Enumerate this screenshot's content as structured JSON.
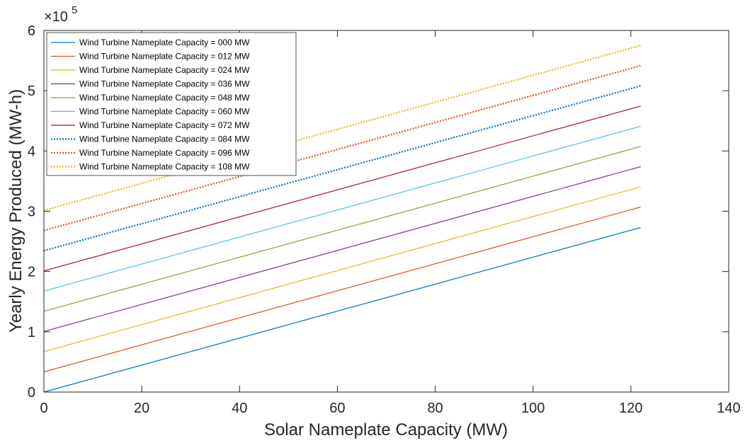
{
  "chart_data": {
    "type": "line",
    "xlabel": "Solar Nameplate Capacity (MW)",
    "ylabel": "Yearly Energy Produced (MW-h)",
    "y_exponent_base": "×10",
    "y_exponent_power": "5",
    "xlim": [
      0,
      140
    ],
    "ylim": [
      0,
      6
    ],
    "y_scale_factor": 100000,
    "x_ticks": [
      0,
      20,
      40,
      60,
      80,
      100,
      120,
      140
    ],
    "y_ticks": [
      0,
      1,
      2,
      3,
      4,
      5,
      6
    ],
    "grid": false,
    "legend_position": "top-left",
    "x": [
      0,
      122
    ],
    "series": [
      {
        "name": "Wind Turbine Nameplate Capacity =  000 MW",
        "values": [
          0.0,
          2.73
        ],
        "color": "#0072BD",
        "style": "solid"
      },
      {
        "name": "Wind Turbine Nameplate Capacity =  012 MW",
        "values": [
          0.335,
          3.07
        ],
        "color": "#D95319",
        "style": "solid"
      },
      {
        "name": "Wind Turbine Nameplate Capacity =  024 MW",
        "values": [
          0.67,
          3.405
        ],
        "color": "#EDB120",
        "style": "solid"
      },
      {
        "name": "Wind Turbine Nameplate Capacity =  036 MW",
        "values": [
          1.005,
          3.74
        ],
        "color": "#7E2F8E",
        "style": "solid"
      },
      {
        "name": "Wind Turbine Nameplate Capacity =  048 MW",
        "values": [
          1.34,
          4.075
        ],
        "color": "#77AC30",
        "style": "solid"
      },
      {
        "name": "Wind Turbine Nameplate Capacity =  060 MW",
        "values": [
          1.675,
          4.41
        ],
        "color": "#4DBEEE",
        "style": "solid"
      },
      {
        "name": "Wind Turbine Nameplate Capacity =  072 MW",
        "values": [
          2.01,
          4.745
        ],
        "color": "#A2142F",
        "style": "solid"
      },
      {
        "name": "Wind Turbine Nameplate Capacity =  084 MW",
        "values": [
          2.345,
          5.08
        ],
        "color": "#0072BD",
        "style": "dotted"
      },
      {
        "name": "Wind Turbine Nameplate Capacity =  096 MW",
        "values": [
          2.68,
          5.415
        ],
        "color": "#D95319",
        "style": "dotted"
      },
      {
        "name": "Wind Turbine Nameplate Capacity = 108 MW",
        "values": [
          3.015,
          5.75
        ],
        "color": "#EDB120",
        "style": "dotted"
      }
    ]
  }
}
